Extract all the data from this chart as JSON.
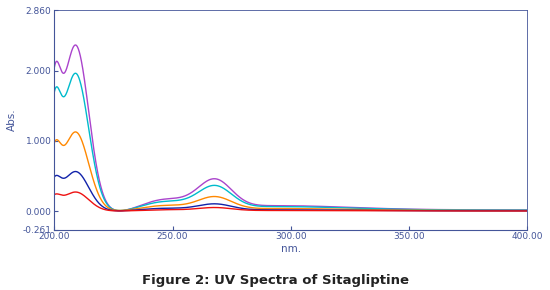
{
  "title": "Figure 2: UV Spectra of Sitagliptine",
  "xlabel": "nm.",
  "ylabel": "Abs.",
  "xlim": [
    200,
    400
  ],
  "ylim": [
    -0.261,
    2.86
  ],
  "yticks": [
    -0.261,
    0.0,
    1.0,
    2.0,
    2.86
  ],
  "ytick_labels": [
    "-0.261",
    "0.000",
    "1.000",
    "2.000",
    "2.860"
  ],
  "xticks": [
    200.0,
    250.0,
    300.0,
    350.0,
    400.0
  ],
  "xtick_labels": [
    "200.00",
    "250.00",
    "300.00",
    "350.00",
    "400.00"
  ],
  "colors": {
    "purple": "#AA44CC",
    "cyan": "#00BBCC",
    "orange": "#FF8800",
    "blue": "#1122AA",
    "red": "#EE1111"
  },
  "spine_color": "#445599",
  "tick_color": "#445599",
  "label_color": "#445599",
  "title_color": "#222222",
  "background": "#FFFFFF"
}
